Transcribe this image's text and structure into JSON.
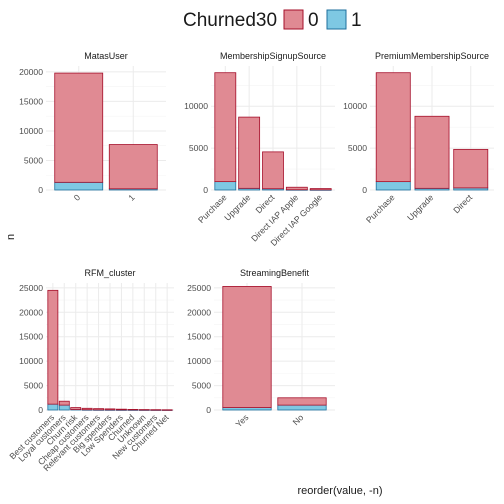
{
  "legend": {
    "title": "Churned30",
    "entries": [
      {
        "label": "0",
        "fill": "#e08a93",
        "stroke": "#a50f2a"
      },
      {
        "label": "1",
        "fill": "#7ec8e3",
        "stroke": "#1f6f9c"
      }
    ]
  },
  "axis": {
    "xlabel": "reorder(value, -n)",
    "ylabel": "n"
  },
  "colors": {
    "churn0_fill": "#e08a93",
    "churn0_stroke": "#a50f2a",
    "churn1_fill": "#7ec8e3",
    "churn1_stroke": "#1f6f9c"
  },
  "chart_data": [
    {
      "type": "bar",
      "stacked": true,
      "title": "MatasUser",
      "categories": [
        "0",
        "1"
      ],
      "series": [
        {
          "name": "0",
          "values": [
            18500,
            7500
          ]
        },
        {
          "name": "1",
          "values": [
            1300,
            200
          ]
        }
      ],
      "ylim": [
        0,
        21000
      ],
      "yticks": [
        0,
        5000,
        10000,
        15000,
        20000
      ]
    },
    {
      "type": "bar",
      "stacked": true,
      "title": "MembershipSignupSource",
      "categories": [
        "Purchase",
        "Upgrade",
        "Direct",
        "Direct IAP Apple",
        "Direct IAP Google"
      ],
      "series": [
        {
          "name": "0",
          "values": [
            13000,
            8500,
            4400,
            300,
            150
          ]
        },
        {
          "name": "1",
          "values": [
            1000,
            200,
            150,
            30,
            20
          ]
        }
      ],
      "ylim": [
        0,
        14800
      ],
      "yticks": [
        0,
        5000,
        10000
      ]
    },
    {
      "type": "bar",
      "stacked": true,
      "title": "PremiumMembershipSource",
      "categories": [
        "Purchase",
        "Upgrade",
        "Direct"
      ],
      "series": [
        {
          "name": "0",
          "values": [
            13000,
            8600,
            4600
          ]
        },
        {
          "name": "1",
          "values": [
            1000,
            200,
            250
          ]
        }
      ],
      "ylim": [
        0,
        14800
      ],
      "yticks": [
        0,
        5000,
        10000
      ]
    },
    {
      "type": "bar",
      "stacked": true,
      "title": "RFM_cluster",
      "categories": [
        "Best customers",
        "Loyal customers",
        "Churn risk",
        "Cheap customers",
        "Relevant customers",
        "Big spenders",
        "Low Spenders",
        "Churned",
        "Unknown",
        "New customers",
        "Churned Net"
      ],
      "series": [
        {
          "name": "0",
          "values": [
            23300,
            800,
            400,
            300,
            250,
            200,
            150,
            100,
            80,
            60,
            40
          ]
        },
        {
          "name": "1",
          "values": [
            1200,
            1000,
            100,
            50,
            30,
            30,
            20,
            20,
            10,
            10,
            10
          ]
        }
      ],
      "ylim": [
        0,
        26000
      ],
      "yticks": [
        0,
        5000,
        10000,
        15000,
        20000,
        25000
      ]
    },
    {
      "type": "bar",
      "stacked": true,
      "title": "StreamingBenefit",
      "categories": [
        "Yes",
        "No"
      ],
      "series": [
        {
          "name": "0",
          "values": [
            24800,
            1500
          ]
        },
        {
          "name": "1",
          "values": [
            500,
            1000
          ]
        }
      ],
      "ylim": [
        0,
        26000
      ],
      "yticks": [
        0,
        5000,
        10000,
        15000,
        20000,
        25000
      ]
    }
  ]
}
